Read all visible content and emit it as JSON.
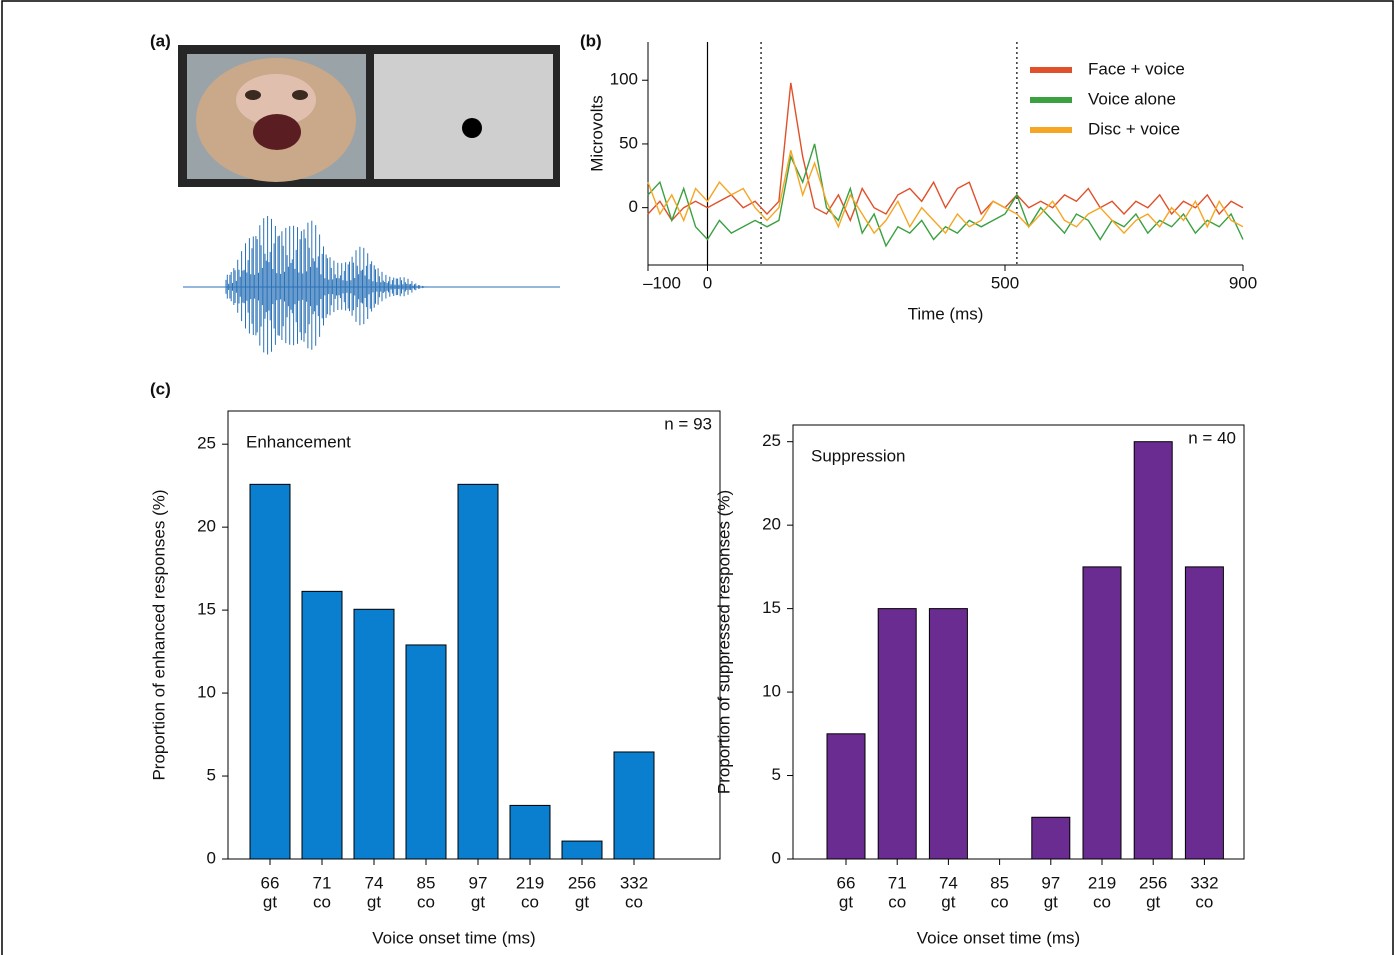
{
  "panel_labels": [
    "(a)",
    "(b)",
    "(c)"
  ],
  "chart_data": [
    {
      "type": "line",
      "xlabel": "Time (ms)",
      "ylabel": "Microvolts",
      "x": [
        -100,
        -80,
        -60,
        -40,
        -20,
        0,
        20,
        40,
        60,
        80,
        100,
        120,
        140,
        160,
        180,
        200,
        220,
        240,
        260,
        280,
        300,
        320,
        340,
        360,
        380,
        400,
        420,
        440,
        460,
        480,
        500,
        520,
        540,
        560,
        580,
        600,
        620,
        640,
        660,
        680,
        700,
        720,
        740,
        760,
        780,
        800,
        820,
        840,
        860,
        880,
        900
      ],
      "xlim": [
        -100,
        900
      ],
      "ylim": [
        -45,
        130
      ],
      "xticks": [
        {
          "value": -100,
          "label": "–100"
        },
        0,
        500,
        900
      ],
      "yticks": [
        0,
        50,
        100
      ],
      "vlines": [
        {
          "value": 0,
          "style": "solid"
        },
        {
          "value": 90,
          "style": "dotted"
        },
        {
          "value": 520,
          "style": "dotted"
        }
      ],
      "legend": "upper right",
      "series": [
        {
          "name": "Face + voice",
          "color": "#e0502a",
          "values": [
            -5,
            5,
            -10,
            0,
            5,
            0,
            5,
            10,
            0,
            5,
            -5,
            5,
            98,
            40,
            0,
            -5,
            10,
            -10,
            15,
            0,
            -5,
            10,
            15,
            5,
            20,
            0,
            15,
            20,
            -5,
            5,
            0,
            10,
            0,
            5,
            0,
            10,
            5,
            15,
            0,
            5,
            -5,
            5,
            0,
            10,
            -5,
            5,
            0,
            10,
            -5,
            5,
            0
          ]
        },
        {
          "name": "Voice alone",
          "color": "#3aa040",
          "values": [
            10,
            20,
            -10,
            15,
            -15,
            -25,
            -10,
            -20,
            -15,
            -10,
            -15,
            -10,
            40,
            20,
            50,
            0,
            -10,
            15,
            -20,
            -5,
            -30,
            -15,
            -20,
            -10,
            -25,
            -15,
            -20,
            -10,
            -15,
            -10,
            -5,
            10,
            -15,
            0,
            -10,
            -20,
            -5,
            -10,
            -25,
            -10,
            -15,
            -5,
            -20,
            -10,
            -15,
            -5,
            -20,
            -10,
            -15,
            -5,
            -25
          ]
        },
        {
          "name": "Disc + voice",
          "color": "#f5a623",
          "values": [
            20,
            -5,
            10,
            -10,
            15,
            5,
            20,
            10,
            15,
            0,
            -10,
            0,
            45,
            10,
            35,
            5,
            -15,
            10,
            -5,
            -20,
            -10,
            5,
            -15,
            0,
            -10,
            -20,
            -5,
            -15,
            -10,
            5,
            0,
            -5,
            -15,
            -5,
            5,
            -10,
            -15,
            -5,
            0,
            -10,
            -20,
            -10,
            -5,
            -15,
            0,
            -10,
            5,
            -15,
            5,
            -10,
            -15
          ]
        }
      ]
    },
    {
      "type": "bar",
      "xlabel": "Voice onset time (ms)",
      "ylabel": "Proportion of enhanced responses (%)",
      "annotations": [
        {
          "text": "Enhancement",
          "position": "upper left"
        },
        {
          "text": "n = 93",
          "position": "upper right"
        }
      ],
      "categories": [
        [
          "66",
          "gt"
        ],
        [
          "71",
          "co"
        ],
        [
          "74",
          "gt"
        ],
        [
          "85",
          "co"
        ],
        [
          "97",
          "gt"
        ],
        [
          "219",
          "co"
        ],
        [
          "256",
          "gt"
        ],
        [
          "332",
          "co"
        ]
      ],
      "values": [
        22.58,
        16.13,
        15.05,
        12.9,
        22.58,
        3.23,
        1.08,
        6.45
      ],
      "color": "#0a7fcf",
      "ylim": [
        0,
        27
      ],
      "yticks": [
        0,
        5,
        10,
        15,
        20,
        25
      ]
    },
    {
      "type": "bar",
      "xlabel": "Voice onset time (ms)",
      "ylabel": "Proportion of suppressed responses (%)",
      "annotations": [
        {
          "text": "Suppression",
          "position": "upper left"
        },
        {
          "text": "n = 40",
          "position": "upper right"
        }
      ],
      "categories": [
        [
          "66",
          "gt"
        ],
        [
          "71",
          "co"
        ],
        [
          "74",
          "gt"
        ],
        [
          "85",
          "co"
        ],
        [
          "97",
          "gt"
        ],
        [
          "219",
          "co"
        ],
        [
          "256",
          "gt"
        ],
        [
          "332",
          "co"
        ]
      ],
      "values": [
        7.5,
        15,
        15,
        0,
        2.5,
        17.5,
        25,
        17.5
      ],
      "color": "#6a2c91",
      "ylim": [
        0,
        26
      ],
      "yticks": [
        0,
        5,
        10,
        15,
        20,
        25
      ]
    }
  ]
}
